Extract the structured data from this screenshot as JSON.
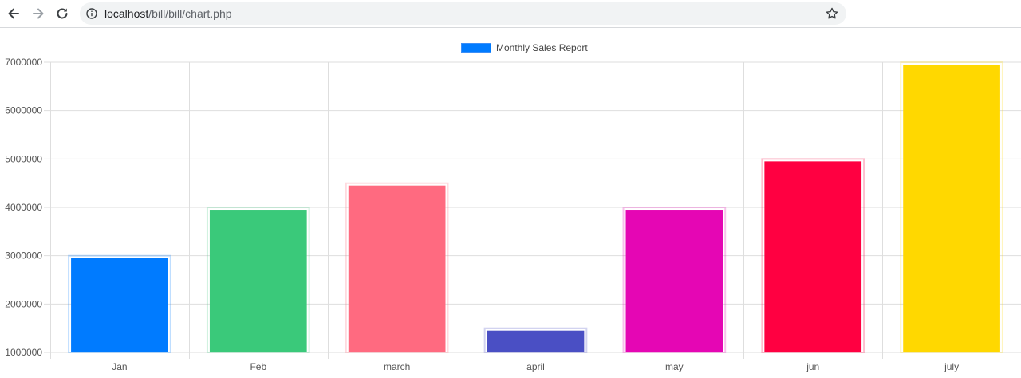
{
  "browser": {
    "url_host": "localhost",
    "url_path": "/bill/bill/chart.php"
  },
  "icons": {
    "back": "arrow-left-icon",
    "forward": "arrow-right-icon",
    "reload": "reload-icon",
    "site_info": "info-icon",
    "bookmark": "star-icon"
  },
  "chart_data": {
    "type": "bar",
    "title": "",
    "xlabel": "",
    "ylabel": "",
    "categories": [
      "Jan",
      "Feb",
      "march",
      "april",
      "may",
      "jun",
      "july"
    ],
    "series": [
      {
        "name": "Monthly Sales Report",
        "values": [
          2950000,
          3950000,
          4450000,
          1450000,
          3950000,
          4950000,
          6950000
        ],
        "colors": [
          "#007bff",
          "#3ac97a",
          "#ff6a80",
          "#4a4fc4",
          "#e506b4",
          "#ff0041",
          "#ffd800"
        ]
      }
    ],
    "ylim": [
      1000000,
      7000000
    ],
    "yticks": [
      1000000,
      2000000,
      3000000,
      4000000,
      5000000,
      6000000,
      7000000
    ],
    "grid": true,
    "legend_position": "top-center",
    "legend_color": "#007bff"
  }
}
